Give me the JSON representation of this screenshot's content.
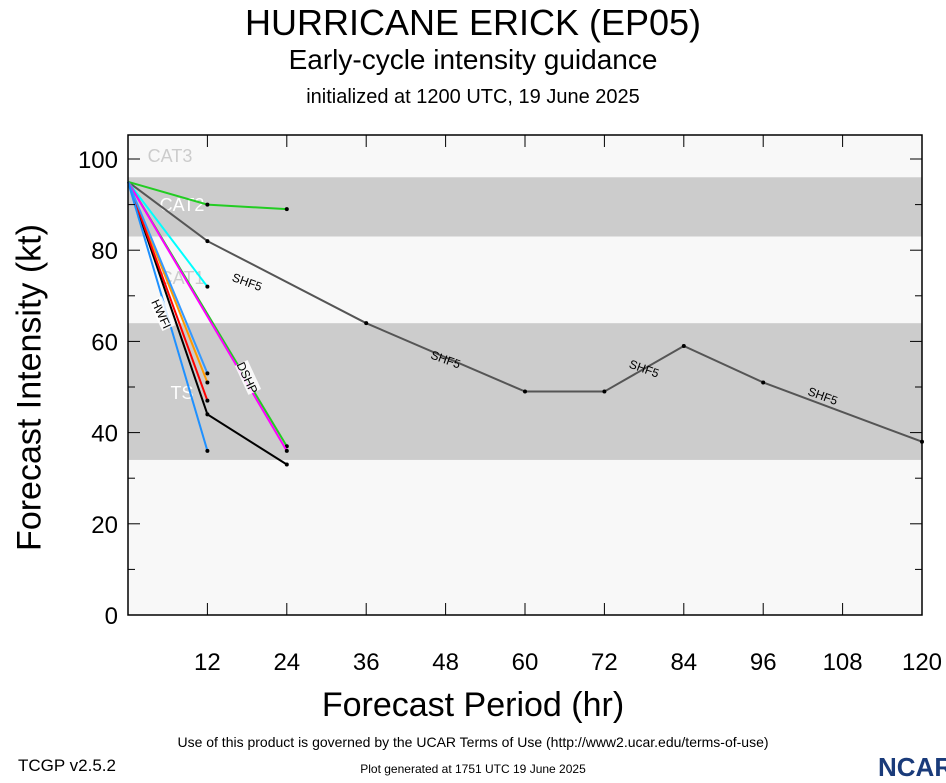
{
  "header": {
    "title": "HURRICANE ERICK (EP05)",
    "subtitle": "Early-cycle intensity guidance",
    "init": "initialized at 1200 UTC, 19 June 2025"
  },
  "footer": {
    "terms": "Use of this product is governed by the UCAR Terms of Use (http://www2.ucar.edu/terms-of-use)",
    "version": "TCGP v2.5.2",
    "generated": "Plot generated at 1751 UTC   19 June 2025",
    "logo": "NCAR"
  },
  "chart_data": {
    "type": "line",
    "xlabel": "Forecast Period (hr)",
    "ylabel": "Forecast Intensity (kt)",
    "xlim": [
      0,
      120
    ],
    "ylim": [
      0,
      105
    ],
    "xticks": [
      12,
      24,
      36,
      48,
      60,
      72,
      84,
      96,
      108,
      120
    ],
    "yticks": [
      0,
      20,
      40,
      60,
      80,
      100
    ],
    "bands": [
      {
        "label": "CAT3",
        "from": 96,
        "to": 105,
        "color": "#f8f8f8"
      },
      {
        "label": "CAT2",
        "from": 83,
        "to": 96,
        "color": "#cccccc"
      },
      {
        "label": "CAT1",
        "from": 64,
        "to": 83,
        "color": "#f8f8f8"
      },
      {
        "label": "TS",
        "from": 34,
        "to": 64,
        "color": "#cccccc"
      },
      {
        "label": "",
        "from": 0,
        "to": 34,
        "color": "#f8f8f8"
      }
    ],
    "series": [
      {
        "name": "SHF5",
        "color": "#555555",
        "x": [
          0,
          12,
          36,
          60,
          72,
          84,
          96,
          120
        ],
        "y": [
          95,
          82,
          64,
          49,
          49,
          59,
          51,
          38
        ]
      },
      {
        "name": "",
        "color": "#22cc22",
        "x": [
          0,
          12,
          24
        ],
        "y": [
          95,
          90,
          89
        ]
      },
      {
        "name": "",
        "color": "#00ffff",
        "x": [
          0,
          12
        ],
        "y": [
          95,
          72
        ]
      },
      {
        "name": "DSHP",
        "color": "#22cc22",
        "x": [
          0,
          24
        ],
        "y": [
          95,
          37
        ]
      },
      {
        "name": "",
        "color": "#ff00ff",
        "x": [
          0,
          24
        ],
        "y": [
          95,
          36
        ]
      },
      {
        "name": "",
        "color": "#000000",
        "x": [
          0,
          12,
          24
        ],
        "y": [
          95,
          44,
          33
        ]
      },
      {
        "name": "",
        "color": "#ff9900",
        "x": [
          0,
          12
        ],
        "y": [
          95,
          51
        ]
      },
      {
        "name": "",
        "color": "#ff0000",
        "x": [
          0,
          12
        ],
        "y": [
          95,
          47
        ]
      },
      {
        "name": "",
        "color": "#3399ff",
        "x": [
          0,
          12
        ],
        "y": [
          95,
          53
        ]
      },
      {
        "name": "HWFI",
        "color": "#1e90ff",
        "x": [
          0,
          12
        ],
        "y": [
          95,
          36
        ]
      }
    ],
    "line_labels": [
      {
        "text": "SHF5",
        "x": 18,
        "y": 73
      },
      {
        "text": "SHF5",
        "x": 48,
        "y": 56
      },
      {
        "text": "SHF5",
        "x": 78,
        "y": 54
      },
      {
        "text": "SHF5",
        "x": 105,
        "y": 48
      }
    ]
  }
}
